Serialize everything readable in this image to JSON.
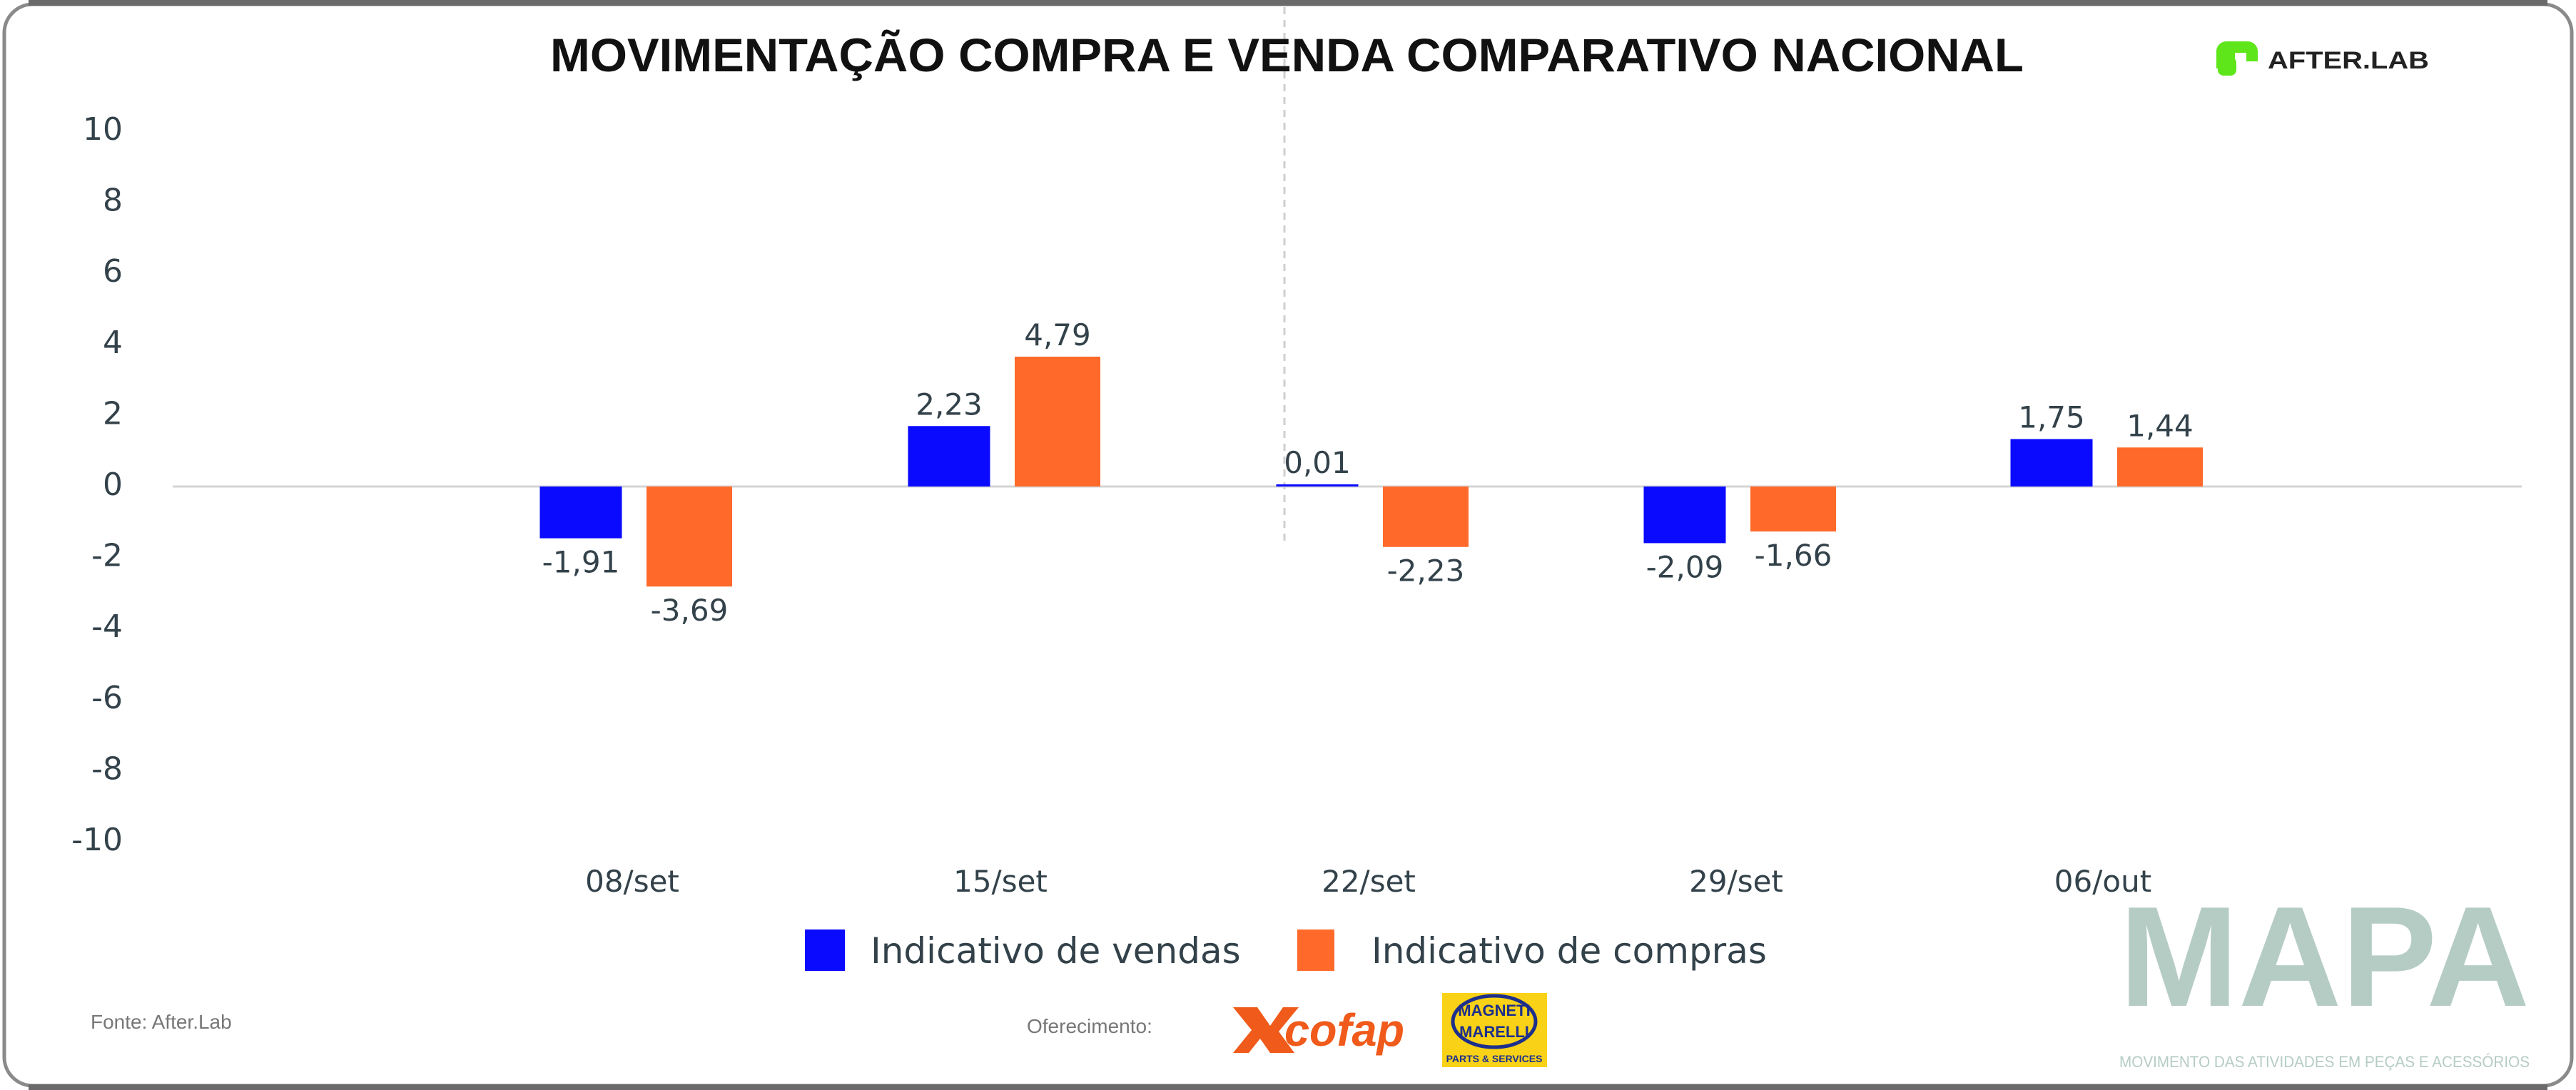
{
  "header": {
    "title": "MOVIMENTAÇÃO COMPRA E VENDA COMPARATIVO NACIONAL",
    "logo_text": "AFTER.LAB"
  },
  "chart_data": {
    "type": "bar",
    "title": "MOVIMENTAÇÃO COMPRA E VENDA COMPARATIVO NACIONAL",
    "categories": [
      "08/set",
      "15/set",
      "22/set",
      "29/set",
      "06/out"
    ],
    "series": [
      {
        "name": "Indicativo de vendas",
        "values": [
          -1.91,
          2.23,
          0.01,
          -2.09,
          1.75
        ],
        "color": "#0a0aff"
      },
      {
        "name": "Indicativo de compras",
        "values": [
          -3.69,
          4.79,
          -2.23,
          -1.66,
          1.44
        ],
        "color": "#ff6a2b"
      }
    ],
    "data_labels": [
      [
        "-1,91",
        "2,23",
        "0,01",
        "-2,09",
        "1,75"
      ],
      [
        "-3,69",
        "4,79",
        "-2,23",
        "-1,66",
        "1,44"
      ]
    ],
    "yticks": [
      "10",
      "8",
      "6",
      "4",
      "2",
      "0",
      "-2",
      "-4",
      "-6",
      "-8",
      "-10"
    ],
    "ylim": [
      -10,
      10
    ],
    "xlabel": "",
    "ylabel": "",
    "grid": false,
    "legend_position": "bottom"
  },
  "footer": {
    "source": "Fonte: After.Lab",
    "sponsor_label": "Oferecimento:",
    "sponsor1": "cofap",
    "sponsor2_line1": "MAGNETI",
    "sponsor2_line2": "MARELLI",
    "sponsor2_tagline": "PARTS & SERVICES",
    "brand": "MAPA",
    "brand_tagline": "MOVIMENTO DAS ATIVIDADES EM PEÇAS E ACESSÓRIOS"
  }
}
